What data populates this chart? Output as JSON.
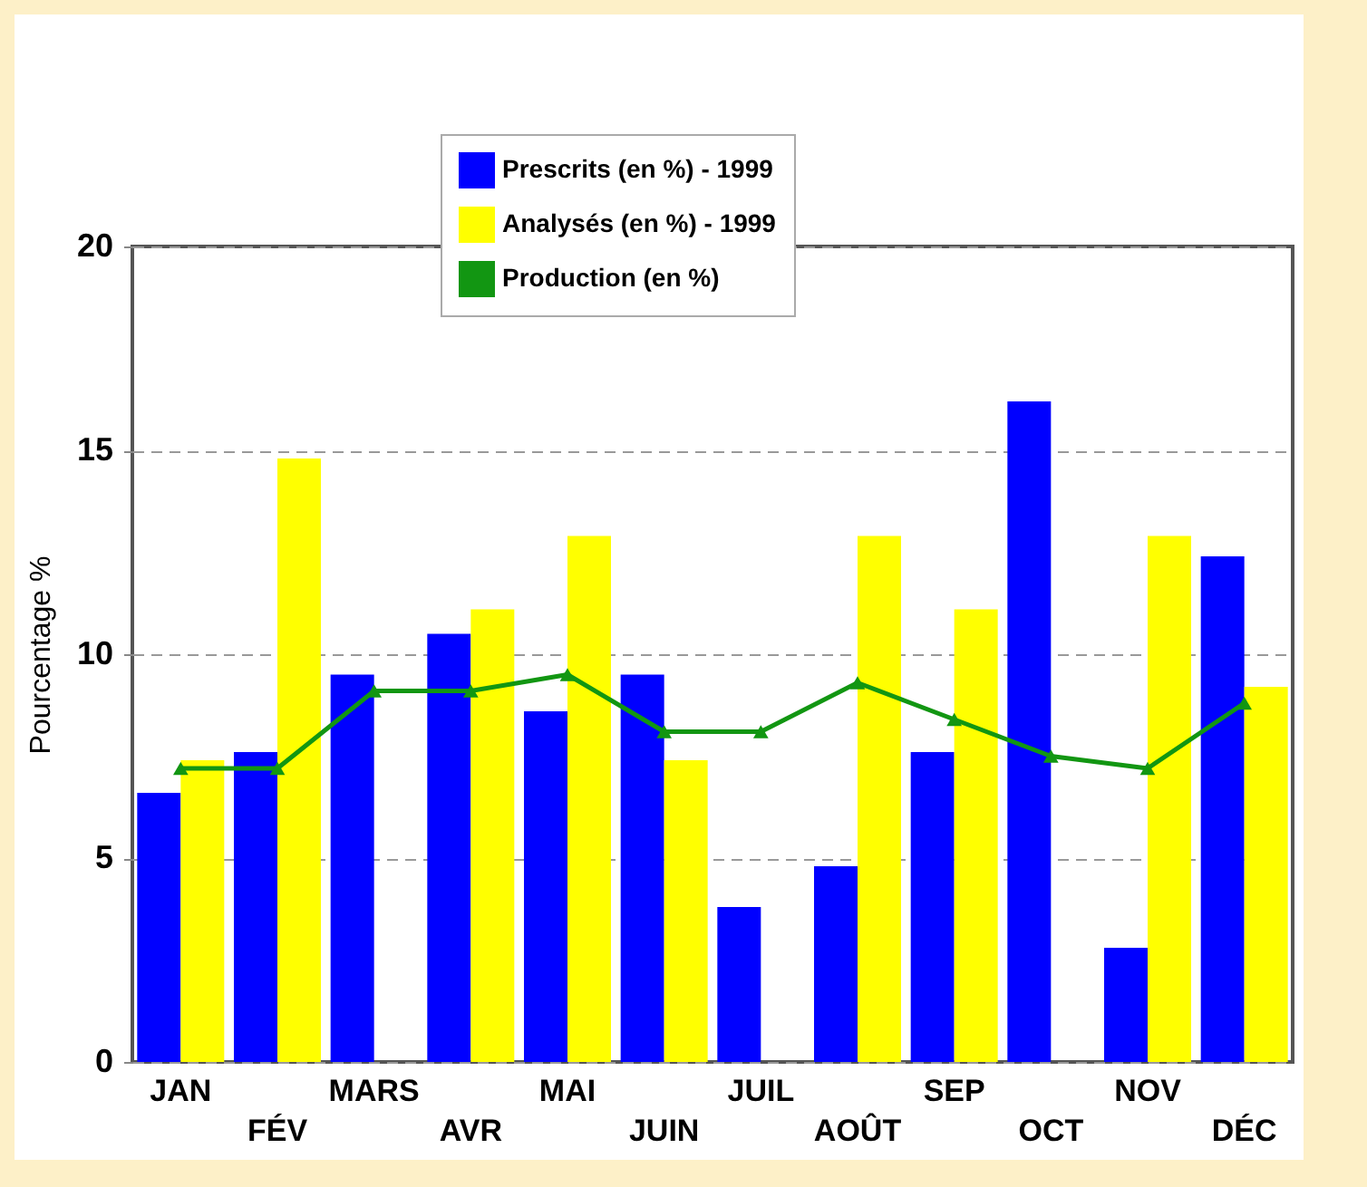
{
  "chart_data": {
    "type": "bar",
    "ylabel": "Pourcentage %",
    "categories": [
      "JAN",
      "FÉV",
      "MARS",
      "AVR",
      "MAI",
      "JUIN",
      "JUIL",
      "AOÛT",
      "SEP",
      "OCT",
      "NOV",
      "DÉC"
    ],
    "series": [
      {
        "name": "Prescrits (en %) - 1999",
        "color": "#0000ff",
        "values": [
          6.6,
          7.6,
          9.5,
          10.5,
          8.6,
          9.5,
          3.8,
          4.8,
          7.6,
          16.2,
          2.8,
          12.4
        ]
      },
      {
        "name": "Analysés (en %) - 1999",
        "color": "#ffff00",
        "values": [
          7.4,
          14.8,
          null,
          11.1,
          12.9,
          7.4,
          null,
          12.9,
          11.1,
          null,
          12.9,
          9.2
        ]
      },
      {
        "name": "Production (en %)",
        "type": "line",
        "color": "#129612",
        "marker": "triangle",
        "values": [
          7.2,
          7.2,
          9.1,
          9.1,
          9.5,
          8.1,
          8.1,
          9.3,
          8.4,
          7.5,
          7.2,
          8.8
        ]
      }
    ],
    "ylim": [
      0,
      20
    ],
    "yticks": [
      0,
      5,
      10,
      15,
      20
    ],
    "grid": "y",
    "legend": "top"
  }
}
